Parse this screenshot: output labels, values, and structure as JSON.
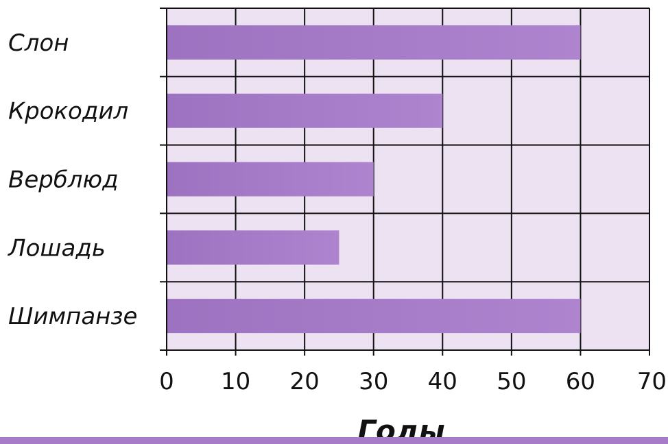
{
  "chart_data": {
    "type": "bar",
    "orientation": "horizontal",
    "categories": [
      "Слон",
      "Крокодил",
      "Верблюд",
      "Лошадь",
      "Шимпанзе"
    ],
    "values": [
      60,
      40,
      30,
      25,
      60
    ],
    "xlabel": "Годы",
    "ylabel": "",
    "xlim": [
      0,
      70
    ],
    "xticks": [
      "0",
      "10",
      "20",
      "30",
      "40",
      "50",
      "60",
      "70"
    ],
    "grid": true,
    "legend": "none",
    "colors": {
      "bar": "#a77bc8",
      "plot_background": "#ece2f2",
      "grid": "#111111",
      "bottom_band": "#a77bc8"
    }
  }
}
